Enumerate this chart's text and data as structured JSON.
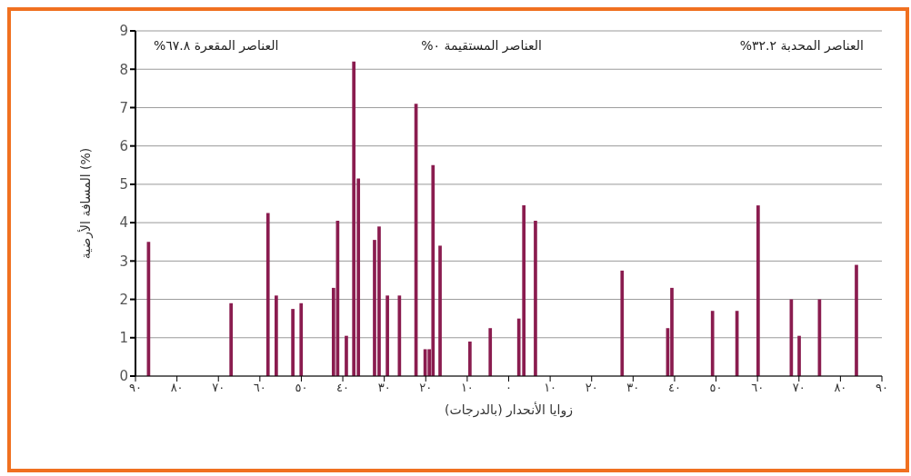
{
  "chart_data": {
    "type": "bar",
    "xlabel": "زوايا الأنحدار (بالدرجات)",
    "ylabel": "المسافة الأرضية (%)",
    "annotations": [
      "العناصر المقعرة ٦٧.٨%",
      "العناصر المستقيمة ٠%",
      "العناصر المحدبة ٣٢.٢%"
    ],
    "x": [
      -86.8,
      -66.9,
      -58,
      -56,
      -52,
      -50,
      -42.2,
      -41.2,
      -39.1,
      -37.3,
      -36.2,
      -32.3,
      -31.2,
      -29.2,
      -26.3,
      -22.3,
      -20.1,
      -19.1,
      -18.2,
      -16.5,
      -9.3,
      -4.4,
      2.5,
      3.7,
      6.5,
      27.4,
      38.4,
      39.4,
      49.2,
      55.1,
      60.2,
      68.2,
      70.1,
      75,
      83.9
    ],
    "values": [
      3.5,
      1.9,
      4.25,
      2.1,
      1.75,
      1.9,
      2.3,
      4.05,
      1.05,
      8.2,
      5.15,
      3.55,
      3.9,
      2.1,
      2.1,
      7.1,
      0.7,
      0.7,
      5.5,
      3.4,
      0.9,
      1.25,
      1.5,
      4.45,
      4.05,
      2.75,
      1.25,
      2.3,
      1.7,
      1.7,
      4.45,
      2,
      1.05,
      2,
      2.9
    ],
    "color": "#8a1c4f",
    "xlim": [
      -90,
      90
    ],
    "xticks": [
      {
        "value": -90,
        "label": "٩٠"
      },
      {
        "value": -80,
        "label": "٨٠"
      },
      {
        "value": -70,
        "label": "٧٠"
      },
      {
        "value": -60,
        "label": "٦٠"
      },
      {
        "value": -50,
        "label": "٥٠"
      },
      {
        "value": -40,
        "label": "٤٠"
      },
      {
        "value": -30,
        "label": "٣٠"
      },
      {
        "value": -20,
        "label": "٢٠"
      },
      {
        "value": -10,
        "label": "١٠"
      },
      {
        "value": 0,
        "label": "٠"
      },
      {
        "value": 10,
        "label": "١٠"
      },
      {
        "value": 20,
        "label": "٢٠"
      },
      {
        "value": 30,
        "label": "٣٠"
      },
      {
        "value": 40,
        "label": "٤٠"
      },
      {
        "value": 50,
        "label": "٥٠"
      },
      {
        "value": 60,
        "label": "٦٠"
      },
      {
        "value": 70,
        "label": "٧٠"
      },
      {
        "value": 80,
        "label": "٨٠"
      },
      {
        "value": 90,
        "label": "٩٠"
      }
    ],
    "ylim": [
      0,
      9
    ],
    "yticks": [
      0,
      1,
      2,
      3,
      4,
      5,
      6,
      7,
      8,
      9
    ],
    "grid": "y"
  }
}
